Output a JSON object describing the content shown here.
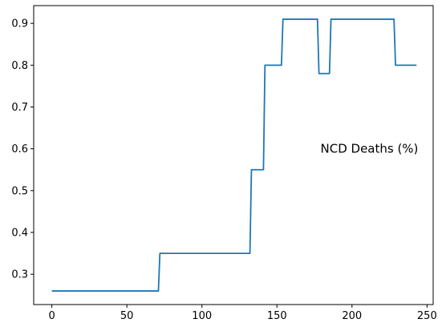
{
  "chart_data": {
    "type": "line",
    "title": "",
    "xlabel": "",
    "ylabel": "",
    "xlim": [
      -12.1,
      254.1
    ],
    "ylim": [
      0.2275,
      0.9425
    ],
    "xticks": [
      0,
      50,
      100,
      150,
      200,
      250
    ],
    "yticks": [
      0.3,
      0.4,
      0.5,
      0.6,
      0.7,
      0.8,
      0.9
    ],
    "grid": false,
    "annotation": {
      "text": "NCD Deaths (%)",
      "x": 179,
      "y": 0.6
    },
    "line_color": "#1f77b4",
    "series": [
      {
        "x": [
          0,
          71,
          72,
          132,
          133,
          141,
          142,
          153,
          154,
          177,
          178,
          185,
          186,
          228,
          229,
          243
        ],
        "y": [
          0.26,
          0.26,
          0.35,
          0.35,
          0.55,
          0.55,
          0.8,
          0.8,
          0.91,
          0.91,
          0.78,
          0.78,
          0.91,
          0.91,
          0.8,
          0.8
        ]
      }
    ]
  }
}
